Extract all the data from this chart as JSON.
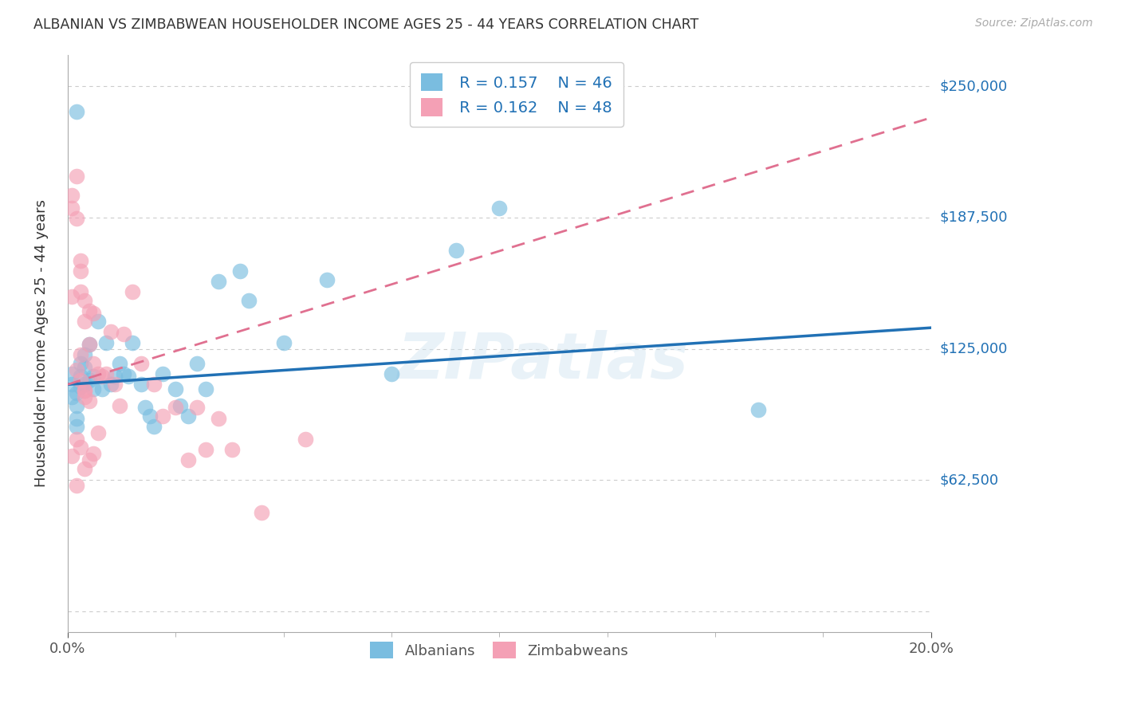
{
  "title": "ALBANIAN VS ZIMBABWEAN HOUSEHOLDER INCOME AGES 25 - 44 YEARS CORRELATION CHART",
  "source": "Source: ZipAtlas.com",
  "ylabel": "Householder Income Ages 25 - 44 years",
  "xticks": [
    0.0,
    0.2
  ],
  "xlabels": [
    "0.0%",
    "20.0%"
  ],
  "yticks": [
    0,
    62500,
    125000,
    187500,
    250000
  ],
  "ytick_right_labels": [
    "",
    "$62,500",
    "$125,000",
    "$187,500",
    "$250,000"
  ],
  "xmin": 0.0,
  "xmax": 0.2,
  "ymin": -10000,
  "ymax": 265000,
  "watermark": "ZIPatlas",
  "legend_R1": "R = 0.157",
  "legend_N1": "N = 46",
  "legend_R2": "R = 0.162",
  "legend_N2": "N = 48",
  "albanian_color": "#7abde0",
  "zimbabwean_color": "#f4a0b5",
  "albanian_line_color": "#2171b5",
  "zimbabwean_line_color": "#e07090",
  "albanian_x": [
    0.001,
    0.001,
    0.001,
    0.002,
    0.002,
    0.002,
    0.002,
    0.003,
    0.003,
    0.003,
    0.004,
    0.004,
    0.004,
    0.005,
    0.005,
    0.006,
    0.006,
    0.007,
    0.008,
    0.009,
    0.01,
    0.011,
    0.012,
    0.013,
    0.014,
    0.015,
    0.017,
    0.018,
    0.019,
    0.02,
    0.022,
    0.025,
    0.026,
    0.028,
    0.03,
    0.032,
    0.035,
    0.04,
    0.042,
    0.05,
    0.06,
    0.075,
    0.09,
    0.1,
    0.16,
    0.002
  ],
  "albanian_y": [
    113000,
    108000,
    102000,
    104000,
    98000,
    92000,
    88000,
    118000,
    112000,
    107000,
    122000,
    116000,
    108000,
    127000,
    110000,
    106000,
    112000,
    138000,
    106000,
    128000,
    108000,
    112000,
    118000,
    113000,
    112000,
    128000,
    108000,
    97000,
    93000,
    88000,
    113000,
    106000,
    98000,
    93000,
    118000,
    106000,
    157000,
    162000,
    148000,
    128000,
    158000,
    113000,
    172000,
    192000,
    96000,
    238000
  ],
  "zimbabwean_x": [
    0.001,
    0.001,
    0.001,
    0.001,
    0.002,
    0.002,
    0.002,
    0.002,
    0.002,
    0.003,
    0.003,
    0.003,
    0.003,
    0.003,
    0.004,
    0.004,
    0.004,
    0.004,
    0.005,
    0.005,
    0.005,
    0.006,
    0.006,
    0.006,
    0.007,
    0.007,
    0.008,
    0.009,
    0.01,
    0.011,
    0.012,
    0.013,
    0.015,
    0.017,
    0.02,
    0.022,
    0.025,
    0.028,
    0.03,
    0.032,
    0.035,
    0.038,
    0.045,
    0.055,
    0.003,
    0.004,
    0.004,
    0.005
  ],
  "zimbabwean_y": [
    198000,
    192000,
    150000,
    74000,
    207000,
    187000,
    115000,
    82000,
    60000,
    167000,
    162000,
    152000,
    122000,
    78000,
    148000,
    138000,
    105000,
    68000,
    143000,
    127000,
    72000,
    142000,
    118000,
    75000,
    113000,
    85000,
    112000,
    113000,
    133000,
    108000,
    98000,
    132000,
    152000,
    118000,
    108000,
    93000,
    97000,
    72000,
    97000,
    77000,
    92000,
    77000,
    47000,
    82000,
    110000,
    105000,
    102000,
    100000
  ]
}
